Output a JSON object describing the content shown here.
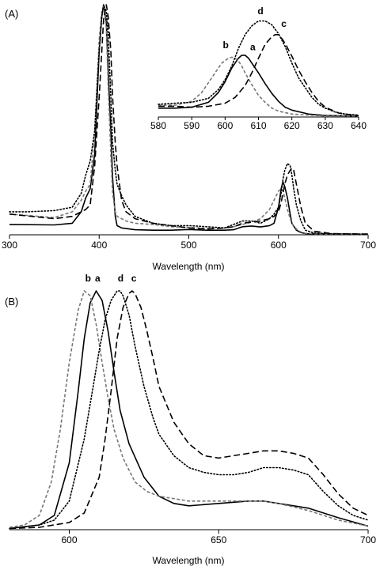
{
  "chart_data": [
    {
      "panel_label": "(A)",
      "type": "line",
      "xlabel": "Wavelength (nm)",
      "ylabel": "",
      "xlim": [
        300,
        700
      ],
      "ylim": [
        0,
        1.0
      ],
      "xticks": [
        300,
        400,
        500,
        600,
        700
      ],
      "grid": false,
      "series": [
        {
          "name": "a",
          "style": "solid",
          "color": "#000000",
          "x": [
            300,
            350,
            370,
            380,
            385,
            390,
            395,
            400,
            403,
            405,
            408,
            410,
            413,
            415,
            418,
            420,
            425,
            430,
            440,
            460,
            480,
            500,
            520,
            540,
            550,
            560,
            570,
            580,
            590,
            595,
            600,
            603,
            605,
            607,
            610,
            613,
            615,
            620,
            625,
            630,
            640,
            660,
            700
          ],
          "y": [
            0.045,
            0.043,
            0.05,
            0.1,
            0.16,
            0.2,
            0.35,
            0.8,
            0.95,
            1.0,
            0.92,
            0.72,
            0.45,
            0.25,
            0.08,
            0.04,
            0.03,
            0.027,
            0.022,
            0.02,
            0.02,
            0.023,
            0.02,
            0.02,
            0.022,
            0.035,
            0.038,
            0.034,
            0.04,
            0.05,
            0.12,
            0.2,
            0.23,
            0.21,
            0.16,
            0.09,
            0.05,
            0.02,
            0.01,
            0.005,
            0.004,
            0.003,
            0.002
          ]
        },
        {
          "name": "b",
          "style": "dash",
          "color": "#777777",
          "x": [
            300,
            350,
            370,
            380,
            385,
            390,
            395,
            400,
            403,
            405,
            408,
            410,
            413,
            415,
            418,
            420,
            425,
            430,
            440,
            460,
            480,
            500,
            520,
            540,
            550,
            560,
            570,
            580,
            590,
            595,
            600,
            603,
            605,
            607,
            610,
            613,
            615,
            620,
            625,
            630,
            640,
            660,
            700
          ],
          "y": [
            0.09,
            0.075,
            0.1,
            0.15,
            0.19,
            0.22,
            0.45,
            0.85,
            0.97,
            1.0,
            0.9,
            0.65,
            0.35,
            0.18,
            0.1,
            0.08,
            0.07,
            0.06,
            0.05,
            0.045,
            0.035,
            0.032,
            0.028,
            0.03,
            0.035,
            0.045,
            0.055,
            0.07,
            0.11,
            0.15,
            0.19,
            0.2,
            0.19,
            0.16,
            0.11,
            0.07,
            0.05,
            0.025,
            0.012,
            0.007,
            0.004,
            0.003,
            0.002
          ]
        },
        {
          "name": "c",
          "style": "longdash",
          "color": "#000000",
          "x": [
            300,
            350,
            370,
            380,
            385,
            390,
            395,
            400,
            403,
            405,
            408,
            410,
            413,
            415,
            418,
            420,
            425,
            430,
            440,
            460,
            480,
            500,
            520,
            540,
            550,
            560,
            570,
            580,
            590,
            595,
            600,
            603,
            605,
            607,
            610,
            613,
            615,
            617,
            620,
            625,
            630,
            640,
            660,
            700
          ],
          "y": [
            0.09,
            0.07,
            0.08,
            0.1,
            0.11,
            0.13,
            0.3,
            0.6,
            0.8,
            0.94,
            1.0,
            0.95,
            0.8,
            0.6,
            0.4,
            0.3,
            0.15,
            0.1,
            0.07,
            0.05,
            0.04,
            0.03,
            0.025,
            0.03,
            0.035,
            0.05,
            0.055,
            0.06,
            0.07,
            0.08,
            0.1,
            0.14,
            0.18,
            0.22,
            0.26,
            0.28,
            0.29,
            0.28,
            0.22,
            0.12,
            0.05,
            0.015,
            0.005,
            0.003
          ]
        },
        {
          "name": "d",
          "style": "dot",
          "color": "#000000",
          "x": [
            300,
            320,
            350,
            370,
            380,
            385,
            390,
            395,
            400,
            403,
            405,
            408,
            410,
            413,
            415,
            418,
            420,
            425,
            430,
            440,
            460,
            480,
            500,
            520,
            540,
            550,
            560,
            570,
            580,
            590,
            595,
            600,
            603,
            605,
            607,
            610,
            613,
            615,
            617,
            620,
            625,
            630,
            640,
            660,
            700
          ],
          "y": [
            0.1,
            0.1,
            0.105,
            0.12,
            0.18,
            0.26,
            0.32,
            0.45,
            0.8,
            0.95,
            1.0,
            0.97,
            0.88,
            0.6,
            0.4,
            0.28,
            0.22,
            0.17,
            0.13,
            0.08,
            0.05,
            0.04,
            0.04,
            0.035,
            0.03,
            0.045,
            0.06,
            0.06,
            0.05,
            0.07,
            0.09,
            0.12,
            0.18,
            0.24,
            0.28,
            0.31,
            0.3,
            0.26,
            0.2,
            0.13,
            0.06,
            0.02,
            0.008,
            0.004,
            0.003
          ]
        }
      ],
      "inset": {
        "type": "line",
        "xlim": [
          580,
          640
        ],
        "ylim": [
          0,
          1.0
        ],
        "xticks": [
          580,
          590,
          600,
          610,
          620,
          630,
          640
        ],
        "series": [
          {
            "name": "a",
            "style": "solid",
            "color": "#000000",
            "x": [
              580,
              585,
              590,
              595,
              598,
              600,
              602,
              604,
              605,
              606,
              607,
              608,
              610,
              612,
              614,
              616,
              618,
              620,
              625,
              630,
              640
            ],
            "y": [
              0.09,
              0.09,
              0.1,
              0.15,
              0.25,
              0.36,
              0.5,
              0.6,
              0.63,
              0.63,
              0.6,
              0.55,
              0.45,
              0.34,
              0.24,
              0.16,
              0.1,
              0.07,
              0.03,
              0.015,
              0.01
            ]
          },
          {
            "name": "b",
            "style": "dash",
            "color": "#777777",
            "x": [
              580,
              585,
              590,
              593,
              595,
              597,
              599,
              601,
              602,
              603,
              604,
              605,
              606,
              608,
              610,
              612,
              614,
              616,
              620,
              625,
              630,
              640
            ],
            "y": [
              0.12,
              0.12,
              0.16,
              0.25,
              0.35,
              0.45,
              0.55,
              0.6,
              0.61,
              0.6,
              0.57,
              0.52,
              0.45,
              0.33,
              0.22,
              0.15,
              0.09,
              0.06,
              0.03,
              0.02,
              0.01,
              0.01
            ]
          },
          {
            "name": "c",
            "style": "longdash",
            "color": "#000000",
            "x": [
              580,
              585,
              590,
              595,
              600,
              603,
              606,
              608,
              610,
              612,
              614,
              615,
              616,
              617,
              618,
              620,
              622,
              624,
              626,
              628,
              630,
              634,
              638,
              640
            ],
            "y": [
              0.11,
              0.11,
              0.1,
              0.11,
              0.14,
              0.2,
              0.32,
              0.45,
              0.6,
              0.74,
              0.82,
              0.84,
              0.84,
              0.8,
              0.75,
              0.62,
              0.48,
              0.36,
              0.25,
              0.16,
              0.1,
              0.04,
              0.02,
              0.015
            ]
          },
          {
            "name": "d",
            "style": "dot",
            "color": "#000000",
            "x": [
              580,
              585,
              590,
              595,
              598,
              600,
              602,
              604,
              606,
              608,
              610,
              612,
              614,
              616,
              618,
              620,
              622,
              624,
              626,
              628,
              630,
              633,
              636,
              640
            ],
            "y": [
              0.13,
              0.14,
              0.15,
              0.19,
              0.28,
              0.38,
              0.52,
              0.7,
              0.84,
              0.93,
              0.98,
              0.98,
              0.94,
              0.85,
              0.72,
              0.55,
              0.4,
              0.3,
              0.2,
              0.13,
              0.09,
              0.05,
              0.03,
              0.02
            ]
          }
        ],
        "labels": [
          {
            "text": "a",
            "x": 608.3,
            "y": 0.68
          },
          {
            "text": "b",
            "x": 600.2,
            "y": 0.7
          },
          {
            "text": "c",
            "x": 617.6,
            "y": 0.92
          },
          {
            "text": "d",
            "x": 610.6,
            "y": 1.05
          }
        ]
      }
    },
    {
      "panel_label": "(B)",
      "type": "line",
      "xlabel": "Wavelength (nm)",
      "ylabel": "",
      "xlim": [
        580,
        700
      ],
      "ylim": [
        0,
        1.0
      ],
      "xticks": [
        600,
        650,
        700
      ],
      "grid": false,
      "series": [
        {
          "name": "a",
          "style": "solid",
          "color": "#000000",
          "x": [
            580,
            590,
            595,
            600,
            603,
            605,
            607,
            609,
            611,
            613,
            615,
            617,
            620,
            625,
            630,
            635,
            640,
            650,
            660,
            665,
            670,
            680,
            690,
            700
          ],
          "y": [
            0.005,
            0.02,
            0.06,
            0.28,
            0.58,
            0.8,
            0.95,
            1.0,
            0.96,
            0.83,
            0.66,
            0.5,
            0.36,
            0.22,
            0.14,
            0.11,
            0.1,
            0.11,
            0.12,
            0.12,
            0.11,
            0.09,
            0.05,
            0.015
          ]
        },
        {
          "name": "b",
          "style": "dash",
          "color": "#777777",
          "x": [
            580,
            585,
            590,
            594,
            597,
            600,
            603,
            605,
            607,
            609,
            611,
            613,
            615,
            618,
            622,
            626,
            630,
            635,
            640,
            650,
            660,
            665,
            670,
            680,
            690,
            700
          ],
          "y": [
            0.01,
            0.02,
            0.06,
            0.2,
            0.42,
            0.7,
            0.92,
            1.0,
            0.98,
            0.86,
            0.7,
            0.55,
            0.42,
            0.3,
            0.2,
            0.16,
            0.14,
            0.13,
            0.12,
            0.12,
            0.12,
            0.12,
            0.11,
            0.08,
            0.04,
            0.015
          ]
        },
        {
          "name": "c",
          "style": "longdash",
          "color": "#000000",
          "x": [
            580,
            590,
            600,
            605,
            610,
            612,
            614,
            616,
            618,
            620,
            621,
            622,
            624,
            626,
            628,
            630,
            635,
            640,
            645,
            650,
            655,
            660,
            665,
            670,
            675,
            680,
            685,
            690,
            695,
            700
          ],
          "y": [
            0.005,
            0.01,
            0.03,
            0.07,
            0.22,
            0.38,
            0.58,
            0.8,
            0.93,
            0.99,
            1.0,
            0.99,
            0.93,
            0.83,
            0.72,
            0.6,
            0.45,
            0.36,
            0.31,
            0.3,
            0.31,
            0.32,
            0.33,
            0.33,
            0.32,
            0.3,
            0.23,
            0.15,
            0.09,
            0.06
          ]
        },
        {
          "name": "d",
          "style": "dot",
          "color": "#000000",
          "x": [
            580,
            590,
            595,
            600,
            605,
            608,
            610,
            612,
            614,
            616,
            617,
            618,
            620,
            622,
            625,
            628,
            630,
            635,
            640,
            645,
            650,
            655,
            660,
            665,
            670,
            675,
            680,
            685,
            690,
            695,
            700
          ],
          "y": [
            0.005,
            0.02,
            0.04,
            0.12,
            0.38,
            0.6,
            0.75,
            0.88,
            0.96,
            1.0,
            1.0,
            0.98,
            0.9,
            0.77,
            0.6,
            0.47,
            0.4,
            0.31,
            0.26,
            0.24,
            0.23,
            0.23,
            0.24,
            0.26,
            0.26,
            0.25,
            0.23,
            0.16,
            0.1,
            0.06,
            0.04
          ]
        }
      ],
      "labels": [
        {
          "text": "b",
          "x": 606.3,
          "y": 1.04
        },
        {
          "text": "a",
          "x": 609.5,
          "y": 1.04
        },
        {
          "text": "d",
          "x": 617.2,
          "y": 1.04
        },
        {
          "text": "c",
          "x": 621.6,
          "y": 1.04
        }
      ]
    }
  ]
}
